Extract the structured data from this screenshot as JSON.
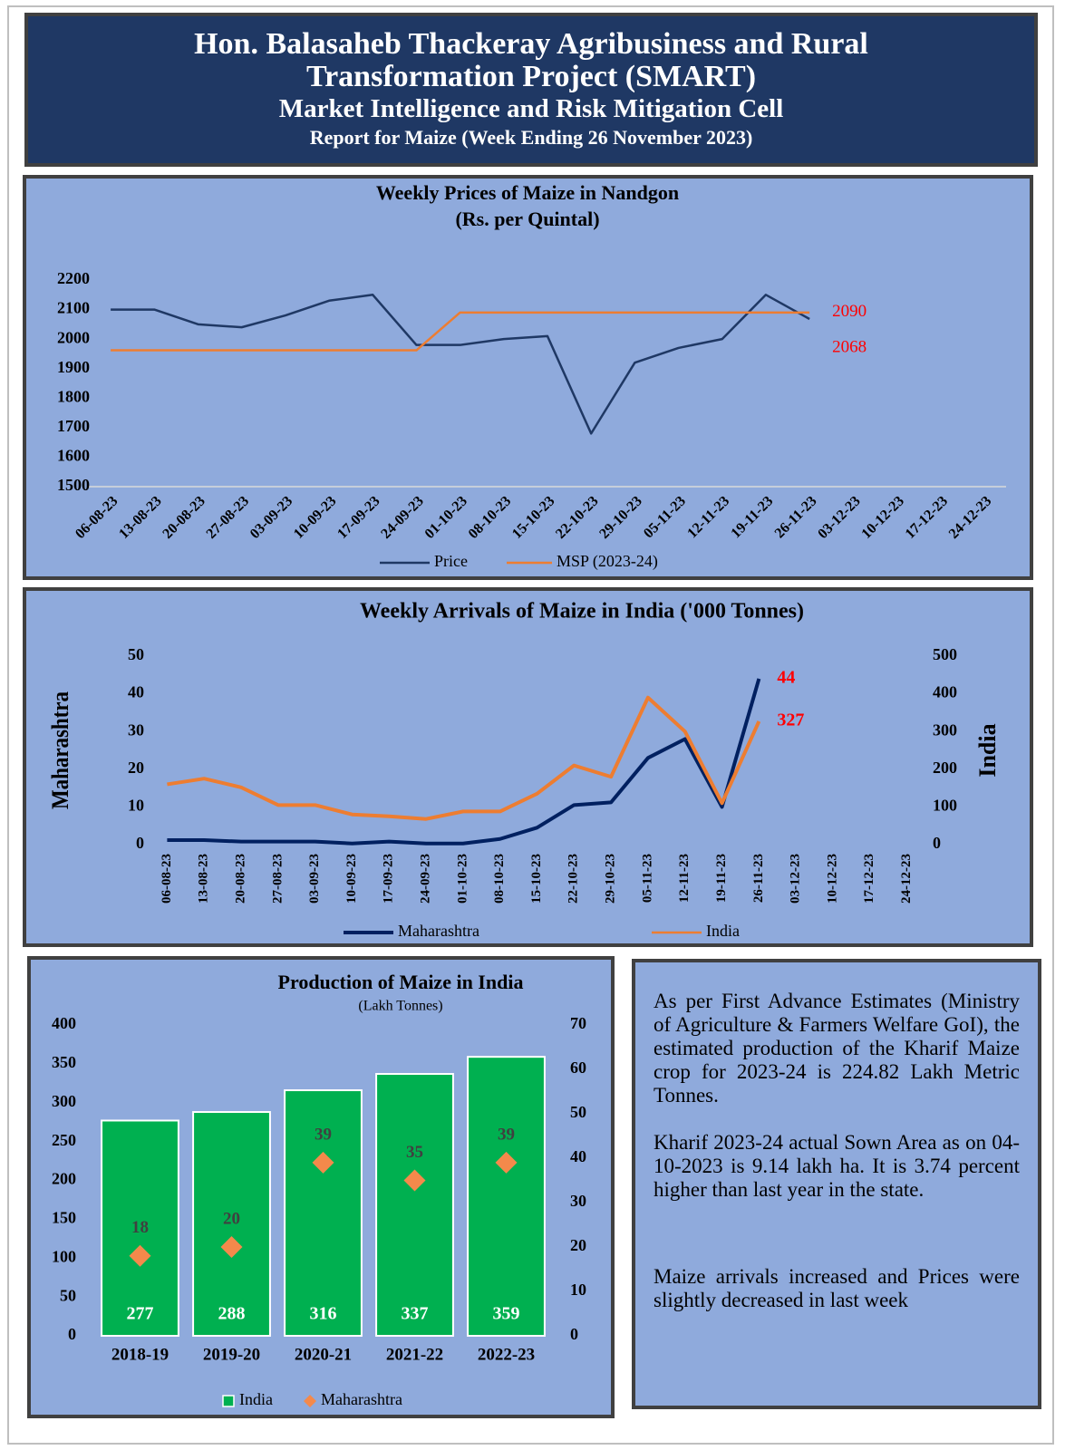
{
  "header": {
    "lines": [
      "Hon. Balasaheb Thackeray Agribusiness and Rural",
      "Transformation Project (SMART)",
      "Market Intelligence and Risk Mitigation Cell",
      "Report for Maize (Week Ending 26 November 2023)"
    ]
  },
  "chart_data": [
    {
      "type": "line",
      "title": "Weekly Prices of Maize in Nandgon",
      "subtitle": "(Rs. per Quintal)",
      "categories": [
        "06-08-23",
        "13-08-23",
        "20-08-23",
        "27-08-23",
        "03-09-23",
        "10-09-23",
        "17-09-23",
        "24-09-23",
        "01-10-23",
        "08-10-23",
        "15-10-23",
        "22-10-23",
        "29-10-23",
        "05-11-23",
        "12-11-23",
        "19-11-23",
        "26-11-23",
        "03-12-23",
        "10-12-23",
        "17-12-23",
        "24-12-23"
      ],
      "series": [
        {
          "name": "Price",
          "color": "#1f3864",
          "values": [
            2100,
            2100,
            2050,
            2040,
            2080,
            2130,
            2150,
            1980,
            1980,
            2000,
            2010,
            1680,
            1920,
            1970,
            2000,
            2150,
            2068,
            null,
            null,
            null,
            null
          ]
        },
        {
          "name": "MSP (2023-24)",
          "color": "#ed7d31",
          "values": [
            1962,
            1962,
            1962,
            1962,
            1962,
            1962,
            1962,
            1962,
            2090,
            2090,
            2090,
            2090,
            2090,
            2090,
            2090,
            2090,
            2090,
            null,
            null,
            null,
            null
          ]
        }
      ],
      "ylim": [
        1500,
        2200
      ],
      "yticks": [
        1500,
        1600,
        1700,
        1800,
        1900,
        2000,
        2100,
        2200
      ],
      "grid": false,
      "legend": "bottom",
      "end_label_color": "#ff0000"
    },
    {
      "type": "line",
      "title": "Weekly Arrivals of Maize in India ('000 Tonnes)",
      "categories": [
        "06-08-23",
        "13-08-23",
        "20-08-23",
        "27-08-23",
        "03-09-23",
        "10-09-23",
        "17-09-23",
        "24-09-23",
        "01-10-23",
        "08-10-23",
        "15-10-23",
        "22-10-23",
        "29-10-23",
        "05-11-23",
        "12-11-23",
        "19-11-23",
        "26-11-23",
        "03-12-23",
        "10-12-23",
        "17-12-23",
        "24-12-23"
      ],
      "series": [
        {
          "name": "Maharashtra",
          "color": "#002060",
          "values": [
            1.2,
            1.2,
            0.8,
            0.8,
            0.8,
            0.3,
            0.8,
            0.3,
            0.3,
            1.5,
            4.5,
            10.5,
            11.2,
            23,
            28,
            10,
            44,
            null,
            null,
            null,
            null
          ]
        },
        {
          "name": "India",
          "color": "#ed7d31",
          "axis": "y2",
          "values": [
            160,
            175,
            152,
            105,
            105,
            80,
            75,
            68,
            88,
            88,
            135,
            210,
            180,
            390,
            300,
            110,
            327,
            null,
            null,
            null,
            null
          ]
        }
      ],
      "ylabel": "Maharashtra",
      "y2label": "India",
      "ylim": [
        0,
        50
      ],
      "yticks": [
        0,
        10,
        20,
        30,
        40,
        50
      ],
      "y2lim": [
        0,
        500
      ],
      "y2ticks": [
        0,
        100,
        200,
        300,
        400,
        500
      ],
      "grid": false,
      "legend": "bottom",
      "end_label_color": "#ff0000"
    },
    {
      "type": "bar",
      "title": "Production of Maize in India",
      "subtitle": "(Lakh Tonnes)",
      "categories": [
        "2018-19",
        "2019-20",
        "2020-21",
        "2021-22",
        "2022-23"
      ],
      "series": [
        {
          "name": "India",
          "color": "#00b050",
          "values": [
            277,
            288,
            316,
            337,
            359
          ]
        },
        {
          "name": "Maharashtra",
          "color": "#f4894b",
          "axis": "y2",
          "marker": "diamond",
          "values": [
            18,
            20,
            39,
            35,
            39
          ]
        }
      ],
      "ylim": [
        0,
        400
      ],
      "yticks": [
        0,
        50,
        100,
        150,
        200,
        250,
        300,
        350,
        400
      ],
      "y2lim": [
        0,
        70
      ],
      "y2ticks": [
        0,
        10,
        20,
        30,
        40,
        50,
        60,
        70
      ],
      "grid": false,
      "legend": "bottom"
    }
  ],
  "text": {
    "paragraphs": [
      "As per First Advance Estimates (Ministry of Agriculture & Farmers Welfare GoI), the estimated production of the Kharif Maize crop for 2023-24 is 224.82 Lakh Metric Tonnes.",
      "Kharif 2023-24 actual Sown Area as on 04-10-2023 is 9.14 lakh ha. It is 3.74 percent higher than last year in the state.",
      "Maize arrivals increased and Prices were slightly decreased in last week"
    ]
  }
}
